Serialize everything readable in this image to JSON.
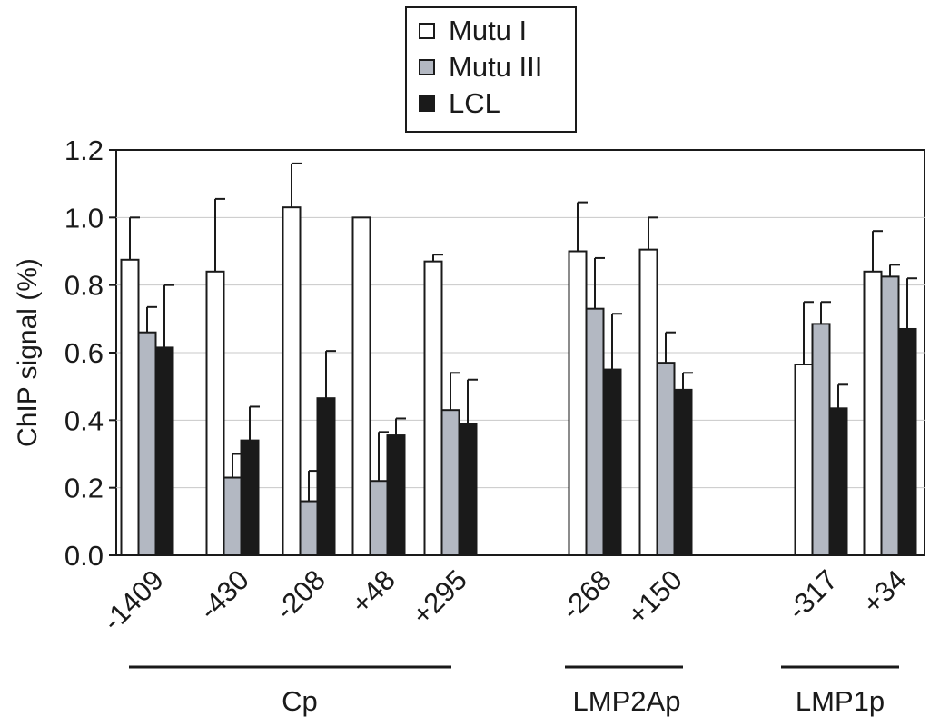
{
  "chart_data": {
    "type": "bar",
    "ylabel": "ChIP signal (%)",
    "ylim": [
      0,
      1.2
    ],
    "yticks": [
      "0.0",
      "0.2",
      "0.4",
      "0.6",
      "0.8",
      "1.0",
      "1.2"
    ],
    "grid": true,
    "legend_position": "top-center",
    "categories": [
      "-1409",
      "-430",
      "-208",
      "+48",
      "+295",
      "-268",
      "+150",
      "-317",
      "+34"
    ],
    "groups": [
      {
        "label": "Cp",
        "categories": [
          "-1409",
          "-430",
          "-208",
          "+48",
          "+295"
        ]
      },
      {
        "label": "LMP2Ap",
        "categories": [
          "-268",
          "+150"
        ]
      },
      {
        "label": "LMP1p",
        "categories": [
          "-317",
          "+34"
        ]
      }
    ],
    "series": [
      {
        "name": "Mutu I",
        "color": "#ffffff",
        "values": [
          0.875,
          0.84,
          1.03,
          1.0,
          0.87,
          0.9,
          0.905,
          0.565,
          0.84
        ],
        "errors": [
          0.125,
          0.215,
          0.13,
          0.0,
          0.02,
          0.145,
          0.095,
          0.185,
          0.12
        ]
      },
      {
        "name": "Mutu III",
        "color": "#b3b8c2",
        "values": [
          0.66,
          0.23,
          0.16,
          0.22,
          0.43,
          0.73,
          0.57,
          0.685,
          0.825
        ],
        "errors": [
          0.075,
          0.07,
          0.09,
          0.145,
          0.11,
          0.15,
          0.09,
          0.065,
          0.035
        ]
      },
      {
        "name": "LCL",
        "color": "#1a1a1a",
        "values": [
          0.615,
          0.34,
          0.465,
          0.355,
          0.39,
          0.55,
          0.49,
          0.435,
          0.67
        ],
        "errors": [
          0.185,
          0.1,
          0.14,
          0.05,
          0.13,
          0.165,
          0.05,
          0.07,
          0.15
        ]
      }
    ]
  }
}
